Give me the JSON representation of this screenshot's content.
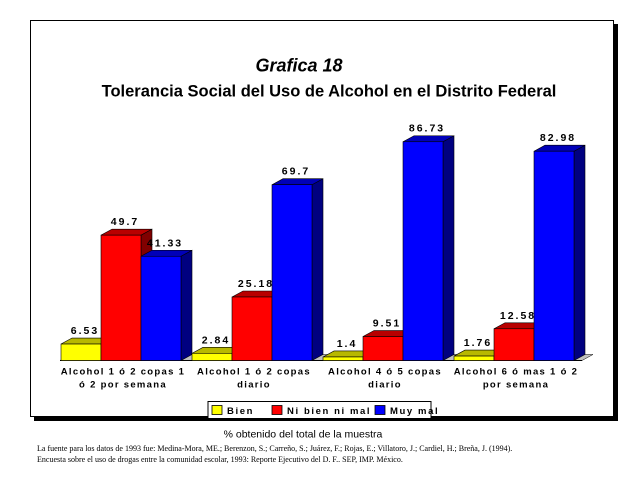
{
  "figure_number": "Grafica 18",
  "source_note": {
    "line1": "La fuente para los datos de 1993 fue: Medina-Mora, ME.; Berenzon, S.; Carreño, S.; Juárez, F.; Rojas, E.; Villatoro, J.; Cardiel, H.; Breña, J. (1994).",
    "line2": "Encuesta sobre el uso de drogas entre la comunidad escolar, 1993: Reporte Ejecutivo del D. F.. SEP, IMP. México."
  },
  "chart_data": {
    "type": "bar",
    "title": "Tolerancia Social del Uso de Alcohol en el Distrito Federal",
    "xlabel": "",
    "ylabel": "",
    "note": "% obtenido del total de la muestra",
    "categories": [
      [
        "Alcohol 1 ó 2 copas 1",
        "ó 2 por semana"
      ],
      [
        "Alcohol 1 ó 2 copas",
        "diario"
      ],
      [
        "Alcohol 4 ó 5 copas",
        "diario"
      ],
      [
        "Alcohol 6 ó mas 1 ó 2",
        "por semana"
      ]
    ],
    "series": [
      {
        "name": "Bien",
        "color": "#ffff00",
        "values": [
          6.53,
          2.84,
          1.4,
          1.76
        ],
        "labels": [
          "6.53",
          "2.84",
          "1.4",
          "1.76"
        ]
      },
      {
        "name": "Ni bien ni mal",
        "color": "#ff0000",
        "values": [
          49.7,
          25.18,
          9.51,
          12.58
        ],
        "labels": [
          "49.7",
          "25.18",
          "9.51",
          "12.58"
        ]
      },
      {
        "name": "Muy mal",
        "color": "#0000ff",
        "values": [
          41.33,
          69.7,
          86.73,
          82.98
        ],
        "labels": [
          "41.33",
          "69.7",
          "86.73",
          "82.98"
        ]
      }
    ],
    "ylim": [
      0,
      90
    ],
    "grid": false,
    "legend_position": "bottom"
  }
}
